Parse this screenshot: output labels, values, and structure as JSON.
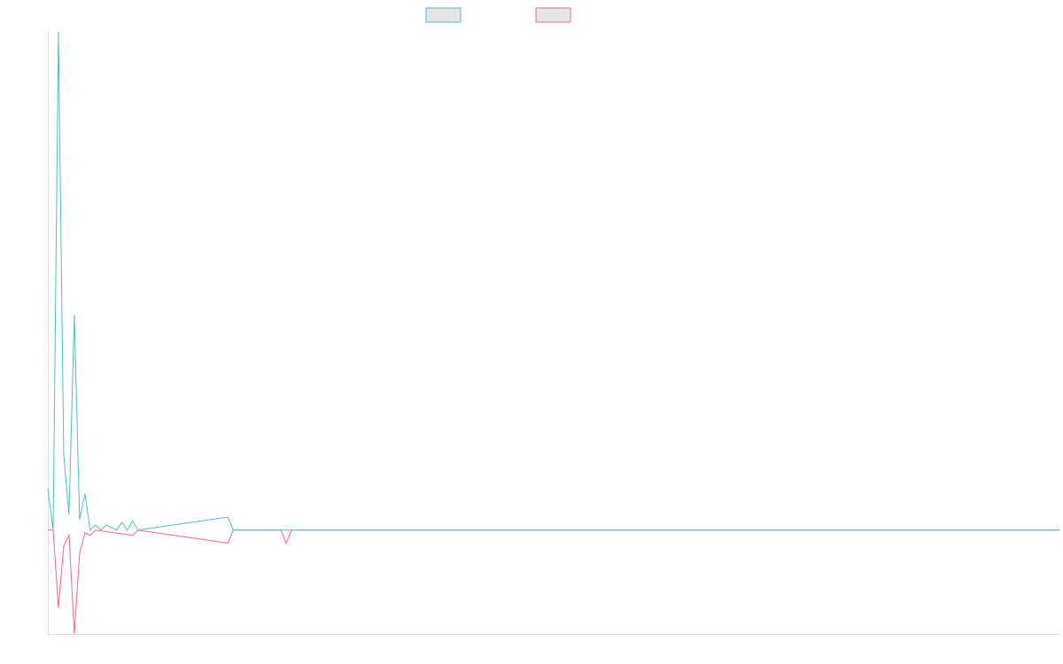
{
  "colors": {
    "series_1": "#4bc0c0",
    "series_2": "#ff6384",
    "legend_fill": "#e6e6e6",
    "axis": "#dcdcdc"
  },
  "chart_data": {
    "type": "line",
    "title": "",
    "xlabel": "",
    "ylabel": "",
    "grid": false,
    "legend_placement": "top-center",
    "x_count": 192,
    "ylim": [
      -2.0,
      9.6
    ],
    "series": [
      {
        "color": "#4bc0c0",
        "points": [
          [
            0,
            0.8
          ],
          [
            1,
            0.0
          ],
          [
            2,
            9.6
          ],
          [
            3,
            1.45
          ],
          [
            4,
            0.3
          ],
          [
            5,
            4.15
          ],
          [
            6,
            0.2
          ],
          [
            7,
            0.7
          ],
          [
            8,
            0.0
          ],
          [
            9,
            0.1
          ],
          [
            10,
            0.0
          ],
          [
            11,
            0.1
          ],
          [
            13,
            0.0
          ],
          [
            14,
            0.15
          ],
          [
            15,
            0.0
          ],
          [
            16,
            0.18
          ],
          [
            17,
            0.0
          ],
          [
            34,
            0.25
          ],
          [
            35,
            0.0
          ],
          [
            191,
            0.0
          ]
        ]
      },
      {
        "color": "#ff6384",
        "points": [
          [
            0,
            0.0
          ],
          [
            1,
            0.0
          ],
          [
            2,
            -1.5
          ],
          [
            3,
            -0.3
          ],
          [
            4,
            -0.1
          ],
          [
            5,
            -2.0
          ],
          [
            6,
            -0.45
          ],
          [
            7,
            -0.05
          ],
          [
            8,
            -0.1
          ],
          [
            9,
            0.0
          ],
          [
            16,
            -0.1
          ],
          [
            17,
            0.0
          ],
          [
            34,
            -0.25
          ],
          [
            35,
            0.0
          ],
          [
            44,
            0.0
          ],
          [
            45,
            -0.25
          ],
          [
            46,
            0.0
          ],
          [
            191,
            0.0
          ]
        ]
      }
    ]
  }
}
